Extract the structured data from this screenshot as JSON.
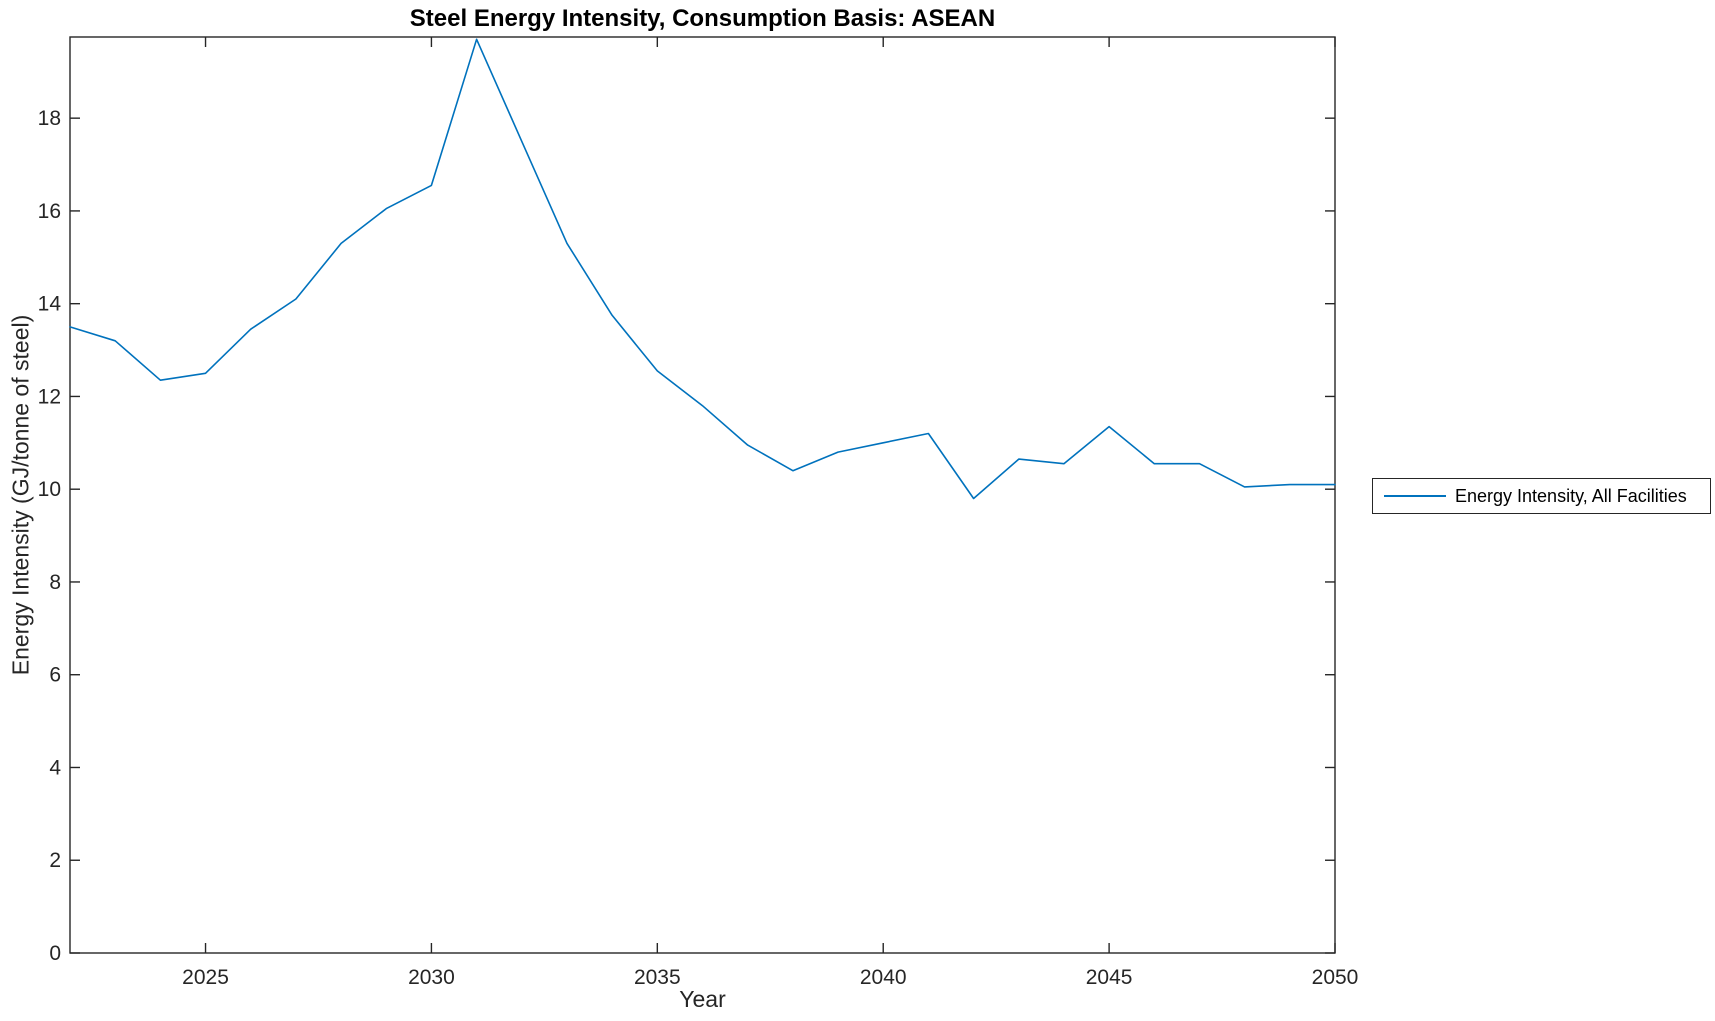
{
  "figure": {
    "background": "#ffffff"
  },
  "chart_data": {
    "type": "line",
    "title": "Steel Energy Intensity, Consumption Basis: ASEAN",
    "xlabel": "Year",
    "ylabel": "Energy Intensity (GJ/tonne of steel)",
    "xlim": [
      2022,
      2050
    ],
    "ylim": [
      0,
      19.75
    ],
    "xticks": [
      2025,
      2030,
      2035,
      2040,
      2045,
      2050
    ],
    "yticks": [
      0,
      2,
      4,
      6,
      8,
      10,
      12,
      14,
      16,
      18
    ],
    "grid": false,
    "box": true,
    "axis_color": "#262626",
    "legend": {
      "position": "right-outside",
      "entries": [
        {
          "label": "Energy Intensity, All Facilities",
          "color": "#0072BD"
        }
      ]
    },
    "series": [
      {
        "name": "Energy Intensity, All Facilities",
        "color": "#0072BD",
        "x": [
          2022,
          2023,
          2024,
          2025,
          2026,
          2027,
          2028,
          2029,
          2030,
          2031,
          2032,
          2033,
          2034,
          2035,
          2036,
          2037,
          2038,
          2039,
          2040,
          2041,
          2042,
          2043,
          2044,
          2045,
          2046,
          2047,
          2048,
          2049,
          2050
        ],
        "values": [
          13.5,
          13.2,
          12.35,
          12.5,
          13.45,
          14.1,
          15.3,
          16.05,
          16.55,
          19.7,
          17.5,
          15.3,
          13.75,
          12.55,
          11.8,
          10.95,
          10.4,
          10.8,
          11.0,
          11.2,
          9.8,
          10.65,
          10.55,
          11.35,
          10.55,
          10.55,
          10.05,
          10.1,
          10.1
        ]
      }
    ]
  }
}
